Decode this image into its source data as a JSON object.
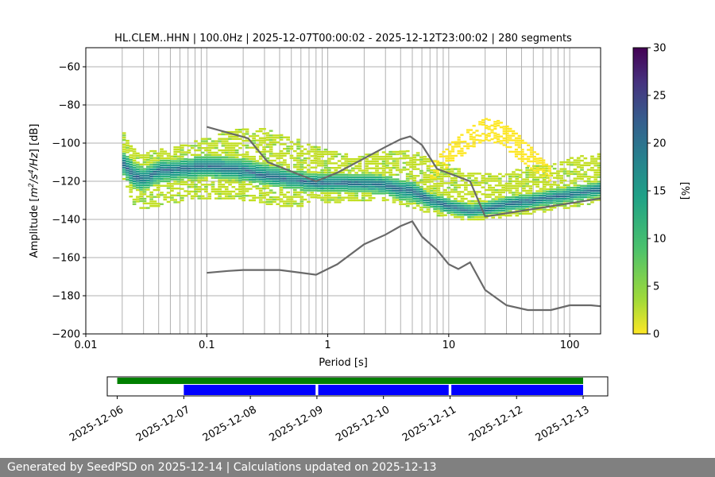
{
  "chart_data": [
    {
      "type": "heatmap",
      "subtype": "probabilistic-psd",
      "title": "HL.CLEM..HHN | 100.0Hz | 2025-12-07T00:00:02 - 2025-12-12T23:00:02 | 280 segments",
      "xlabel": "Period [s]",
      "ylabel_parts": [
        "Amplitude [",
        "m",
        "2",
        "/",
        "s",
        "4",
        "/",
        "Hz",
        "] [dB]"
      ],
      "x_scale": "log",
      "xlim": [
        0.01,
        180
      ],
      "ylim": [
        -200,
        -50
      ],
      "x_ticks": [
        0.01,
        0.1,
        1,
        10,
        100
      ],
      "x_tick_labels": [
        "0.01",
        "0.1",
        "1",
        "10",
        "100"
      ],
      "y_ticks": [
        -200,
        -180,
        -160,
        -140,
        -120,
        -100,
        -80,
        -60
      ],
      "y_tick_labels": [
        "−200",
        "−180",
        "−160",
        "−140",
        "−120",
        "−100",
        "−80",
        "−60"
      ],
      "grid": true,
      "colorbar": {
        "label": "[%]",
        "range": [
          0,
          30
        ],
        "ticks": [
          0,
          5,
          10,
          15,
          20,
          25,
          30
        ],
        "tick_labels": [
          "0",
          "5",
          "10",
          "15",
          "20",
          "25",
          "30"
        ],
        "colormap": "viridis-reversed"
      },
      "pdf_bands": {
        "periods": [
          0.02,
          0.025,
          0.03,
          0.04,
          0.05,
          0.07,
          0.1,
          0.15,
          0.2,
          0.3,
          0.5,
          0.8,
          1,
          1.5,
          2,
          3,
          4,
          5,
          7,
          10,
          15,
          20,
          30,
          50,
          100,
          180
        ],
        "core": [
          -110,
          -117,
          -119,
          -114,
          -114,
          -113,
          -112,
          -113,
          -114,
          -117,
          -119,
          -121,
          -121,
          -121,
          -121,
          -122,
          -124,
          -125,
          -130,
          -133,
          -136,
          -135,
          -132,
          -130,
          -127,
          -124
        ],
        "inner_low": [
          -116,
          -124,
          -125,
          -121,
          -120,
          -119,
          -118,
          -119,
          -120,
          -122,
          -124,
          -126,
          -126,
          -126,
          -126,
          -127,
          -130,
          -131,
          -134,
          -137,
          -139,
          -138,
          -136,
          -134,
          -131,
          -128
        ],
        "inner_high": [
          -104,
          -110,
          -113,
          -109,
          -109,
          -108,
          -106,
          -107,
          -108,
          -111,
          -114,
          -116,
          -116,
          -116,
          -116,
          -117,
          -119,
          -120,
          -126,
          -129,
          -132,
          -131,
          -128,
          -126,
          -123,
          -120
        ],
        "outer_low": [
          -118,
          -131,
          -134,
          -132,
          -131,
          -129,
          -129,
          -128,
          -129,
          -131,
          -133,
          -131,
          -131,
          -130,
          -130,
          -130,
          -131,
          -133,
          -136,
          -139,
          -140,
          -139,
          -138,
          -136,
          -133,
          -130
        ],
        "outer_high": [
          -93,
          -103,
          -106,
          -104,
          -103,
          -100,
          -97,
          -94,
          -92,
          -93,
          -97,
          -102,
          -104,
          -106,
          -106,
          -104,
          -105,
          -104,
          -109,
          -112,
          -116,
          -117,
          -116,
          -113,
          -108,
          -105
        ],
        "arch": {
          "periods": [
            7,
            10,
            15,
            20,
            25,
            30,
            50,
            70
          ],
          "high": [
            -112,
            -101,
            -92,
            -87,
            -88,
            -90,
            -103,
            -113
          ],
          "low": [
            -120,
            -112,
            -103,
            -98,
            -100,
            -103,
            -114,
            -120
          ]
        }
      },
      "series": [
        {
          "name": "",
          "color": "#696969",
          "x": [
            0.1,
            0.22,
            0.32,
            0.8,
            1.2,
            2,
            3,
            4,
            4.8,
            6,
            8,
            15,
            20,
            180
          ],
          "y": [
            -91.5,
            -97.5,
            -110,
            -120,
            -115.5,
            -108,
            -102,
            -98,
            -96.5,
            -101,
            -113.5,
            -120,
            -138.5,
            -129
          ]
        },
        {
          "name": "",
          "color": "#696969",
          "x": [
            0.1,
            0.15,
            0.2,
            0.3,
            0.4,
            0.8,
            1.2,
            2,
            3,
            4,
            5,
            6,
            8,
            10,
            12,
            15,
            20,
            30,
            45,
            70,
            100,
            150,
            180
          ],
          "y": [
            -168,
            -167,
            -166.5,
            -166.5,
            -166.5,
            -169,
            -163.5,
            -153,
            -148,
            -143.5,
            -141,
            -149,
            -156,
            -163.5,
            -166,
            -162.5,
            -177,
            -185,
            -187.5,
            -187.5,
            -185,
            -185,
            -185.5
          ]
        }
      ]
    },
    {
      "type": "timeline",
      "x_tick_labels": [
        "2025-12-06",
        "2025-12-07",
        "2025-12-08",
        "2025-12-09",
        "2025-12-10",
        "2025-12-11",
        "2025-12-12",
        "2025-12-13"
      ],
      "xlim_days": [
        5.85,
        13.37
      ],
      "bars": [
        {
          "color": "#008000",
          "row": "top",
          "spans": [
            [
              6.0,
              13.0
            ]
          ]
        },
        {
          "color": "#0000ff",
          "row": "bottom",
          "spans": [
            [
              7.0,
              8.98
            ],
            [
              9.02,
              10.98
            ],
            [
              11.02,
              13.0
            ]
          ]
        }
      ]
    }
  ],
  "footer": "Generated by SeedPSD on 2025-12-14 | Calculations updated on 2025-12-13"
}
